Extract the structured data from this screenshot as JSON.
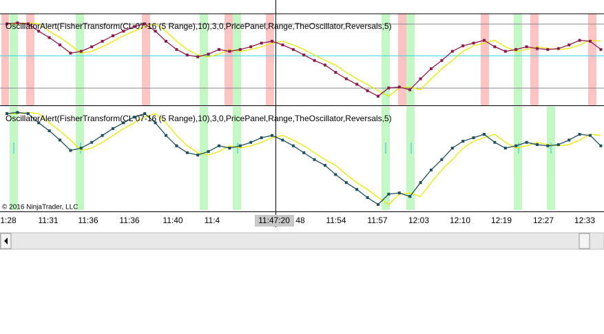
{
  "chart_data": [
    {
      "type": "line",
      "title": "OscillatorAlert(FisherTransform(CL 07-16  (5  Range),10),3,0,PricePanel,Range,TheOscillator,Reversals,5)",
      "ylim": [
        0,
        100
      ],
      "series": [
        {
          "color": "#8b1a4a",
          "values": [
            89,
            90,
            89,
            81,
            74,
            66,
            57,
            59,
            64,
            70,
            76,
            81,
            86,
            89,
            81,
            70,
            61,
            55,
            53,
            56,
            61,
            59,
            61,
            64,
            68,
            70,
            66,
            61,
            55,
            49,
            44,
            36,
            29,
            23,
            16,
            10,
            19,
            20,
            17,
            29,
            40,
            49,
            59,
            65,
            68,
            71,
            64,
            59,
            61,
            64,
            62,
            61,
            62,
            66,
            71,
            70,
            61
          ]
        },
        {
          "color": "#e8e800",
          "values": [
            89,
            89,
            90,
            89,
            81,
            74,
            66,
            57,
            59,
            64,
            70,
            76,
            81,
            86,
            89,
            81,
            70,
            61,
            55,
            53,
            56,
            61,
            59,
            61,
            64,
            68,
            70,
            66,
            61,
            55,
            49,
            44,
            36,
            29,
            23,
            16,
            10,
            19,
            20,
            17,
            29,
            40,
            49,
            59,
            65,
            68,
            71,
            64,
            59,
            61,
            64,
            62,
            61,
            62,
            66,
            71,
            70
          ]
        }
      ]
    },
    {
      "type": "line",
      "title": "OscillatorAlert(FisherTransform(CL 07-16  (5  Range),10),3,0,PricePanel,Range,TheOscillator,Reversals,5)",
      "ylim": [
        0,
        100
      ],
      "series": [
        {
          "color": "#1f4e5f",
          "values": [
            89,
            90,
            89,
            81,
            74,
            66,
            57,
            59,
            64,
            70,
            76,
            81,
            86,
            89,
            81,
            70,
            61,
            55,
            53,
            56,
            61,
            59,
            61,
            64,
            68,
            70,
            66,
            61,
            55,
            49,
            44,
            36,
            29,
            23,
            16,
            10,
            19,
            20,
            17,
            29,
            40,
            49,
            59,
            65,
            68,
            71,
            64,
            59,
            61,
            64,
            62,
            61,
            62,
            66,
            71,
            70,
            61
          ]
        },
        {
          "color": "#e8e800",
          "values": [
            89,
            89,
            90,
            89,
            81,
            74,
            66,
            57,
            59,
            64,
            70,
            76,
            81,
            86,
            89,
            81,
            70,
            61,
            55,
            53,
            56,
            61,
            59,
            61,
            64,
            68,
            70,
            66,
            61,
            55,
            49,
            44,
            36,
            29,
            23,
            16,
            10,
            19,
            20,
            17,
            29,
            40,
            49,
            59,
            65,
            68,
            71,
            64,
            59,
            61,
            64,
            62,
            61,
            62,
            66,
            71,
            70
          ]
        }
      ]
    }
  ],
  "time_labels": [
    "1:28",
    "11:31",
    "11:36",
    "11:36",
    "11:40",
    "11:4",
    "48",
    "11:54",
    "11:57",
    "12:03",
    "12:10",
    "12:19",
    "12:27",
    "12:33"
  ],
  "crosshair_time": "11:47:20",
  "copyright": "© 2016 NinjaTrader, LLC"
}
